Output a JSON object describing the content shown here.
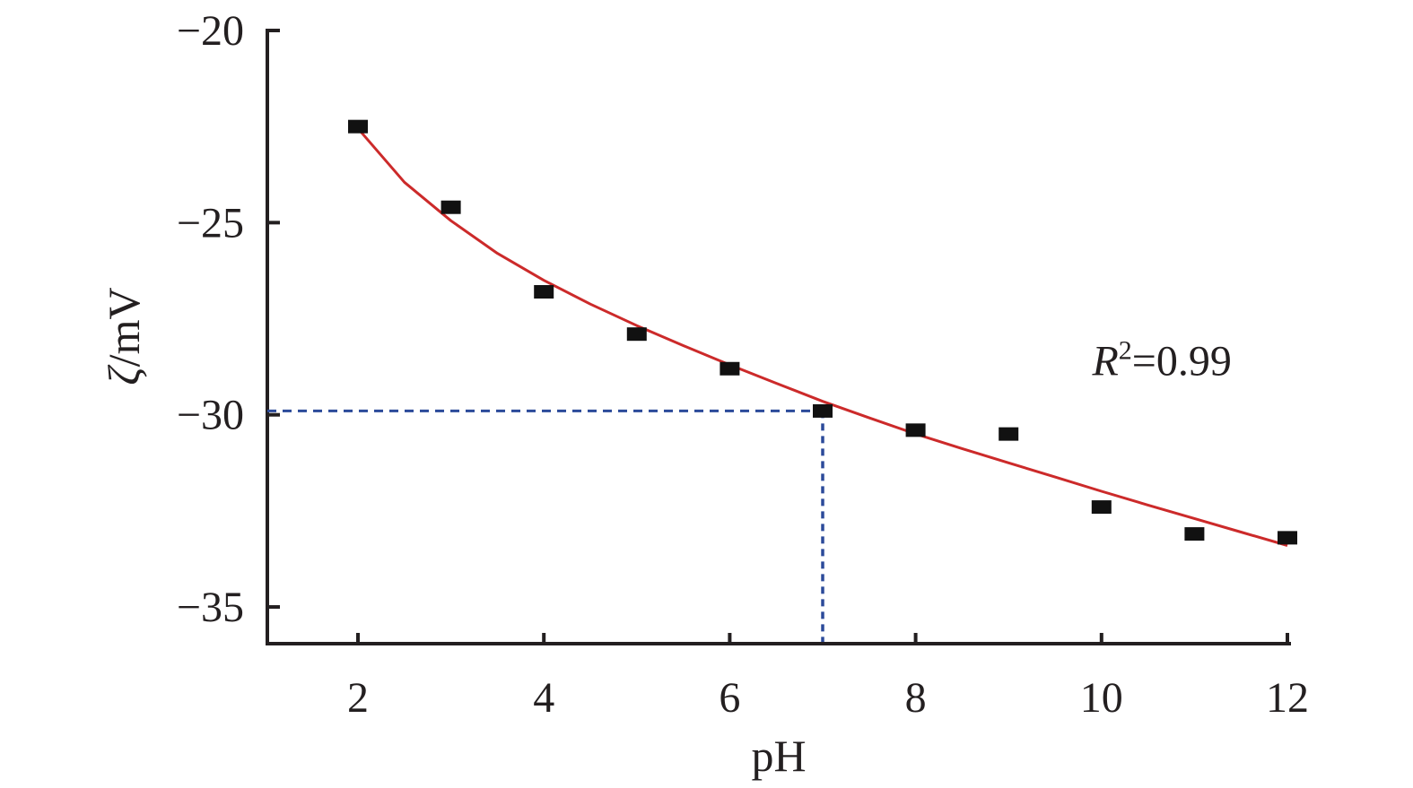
{
  "chart_data": {
    "type": "scatter",
    "xlabel": "pH",
    "ylabel_symbol": "ζ",
    "ylabel_unit": "/mV",
    "xlim": [
      1,
      12.2
    ],
    "ylim": [
      -36,
      -20
    ],
    "xticks": [
      2,
      4,
      6,
      8,
      10,
      12
    ],
    "yticks": [
      -20,
      -25,
      -30,
      -35
    ],
    "ytick_labels": [
      "−20",
      "−25",
      "−30",
      "−35"
    ],
    "series": [
      {
        "type": "scatter",
        "marker": "square",
        "color": "#111111",
        "x": [
          2,
          3,
          4,
          5,
          6,
          7,
          8,
          9,
          10,
          11,
          12
        ],
        "y": [
          -22.5,
          -24.6,
          -26.8,
          -27.9,
          -28.8,
          -29.9,
          -30.4,
          -30.5,
          -32.4,
          -33.1,
          -33.2
        ]
      },
      {
        "type": "line",
        "role": "fit",
        "color": "#cc2a2a",
        "x": [
          2,
          2.5,
          3,
          3.5,
          4,
          4.5,
          5,
          5.5,
          6,
          6.5,
          7,
          7.5,
          8,
          8.5,
          9,
          9.5,
          10,
          10.5,
          11,
          11.5,
          12
        ],
        "y": [
          -22.55,
          -23.95,
          -24.95,
          -25.8,
          -26.5,
          -27.12,
          -27.68,
          -28.2,
          -28.7,
          -29.18,
          -29.65,
          -30.08,
          -30.5,
          -30.88,
          -31.25,
          -31.62,
          -31.99,
          -32.35,
          -32.7,
          -33.05,
          -33.4
        ]
      }
    ],
    "reference": {
      "color": "#2b4a9a",
      "x": 7,
      "y": -29.9,
      "style": "dashed"
    },
    "annotation": {
      "base": "R",
      "sup": "2",
      "rest": "=0.99",
      "x": 9.9,
      "y": -28.6
    }
  }
}
